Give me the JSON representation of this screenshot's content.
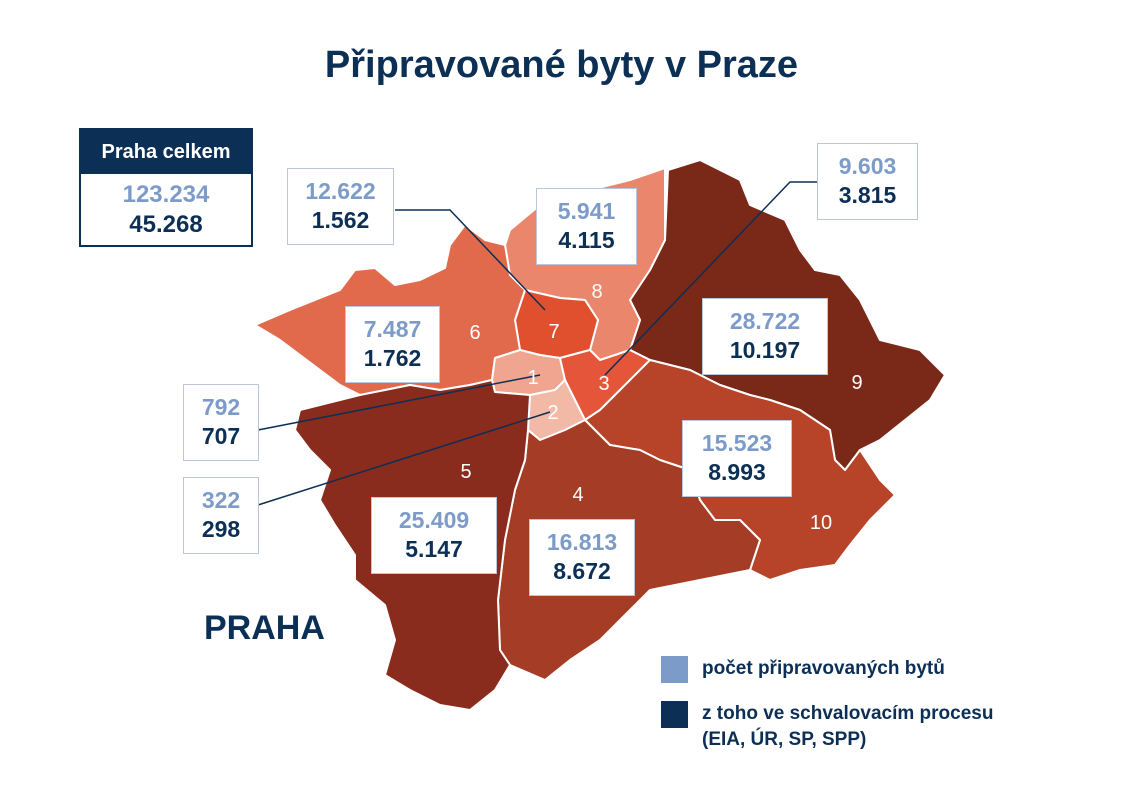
{
  "title": "Připravované byty v Praze",
  "city_label": "PRAHA",
  "colors": {
    "navy": "#0c2f55",
    "light_blue": "#7d9bc8",
    "d1": "#efa58f",
    "d2": "#f1b9a6",
    "d3": "#e4553a",
    "d4": "#a53c26",
    "d5": "#8a2c1d",
    "d6": "#e16a4c",
    "d7": "#e0502f",
    "d8": "#ea866b",
    "d9": "#7a2817",
    "d10": "#b74328"
  },
  "total": {
    "header": "Praha celkem",
    "planned": "123.234",
    "approval": "45.268"
  },
  "districts": [
    {
      "id": "1",
      "label": "1",
      "planned": "792",
      "approval": "707"
    },
    {
      "id": "2",
      "label": "2",
      "planned": "322",
      "approval": "298"
    },
    {
      "id": "3",
      "label": "3",
      "planned": "9.603",
      "approval": "3.815"
    },
    {
      "id": "4",
      "label": "4",
      "planned": "16.813",
      "approval": "8.672"
    },
    {
      "id": "5",
      "label": "5",
      "planned": "25.409",
      "approval": "5.147"
    },
    {
      "id": "6",
      "label": "6",
      "planned": "7.487",
      "approval": "1.762"
    },
    {
      "id": "7",
      "label": "7",
      "planned": "12.622",
      "approval": "1.562"
    },
    {
      "id": "8",
      "label": "8",
      "planned": "5.941",
      "approval": "4.115"
    },
    {
      "id": "9",
      "label": "9",
      "planned": "28.722",
      "approval": "10.197"
    },
    {
      "id": "10",
      "label": "10",
      "planned": "15.523",
      "approval": "8.993"
    }
  ],
  "legend": {
    "planned_label": "počet připravovaných bytů",
    "approval_label_line1": "z toho ve schvalovacím procesu",
    "approval_label_line2": "(EIA, ÚR, SP, SPP)"
  }
}
